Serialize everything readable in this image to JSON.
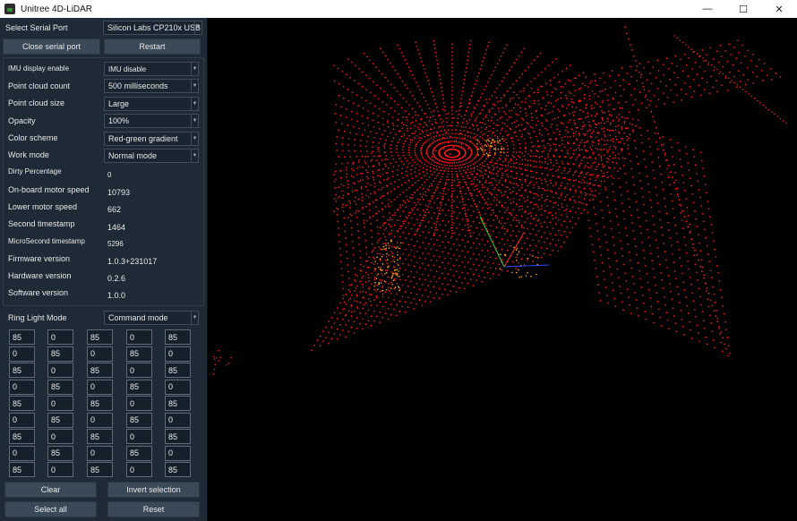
{
  "window": {
    "title": "Unitree 4D-LiDAR",
    "minimize": "—",
    "maximize": "☐",
    "close": "✕"
  },
  "serial": {
    "label": "Select Serial Port",
    "port_value": "Silicon Labs CP210x USB",
    "close_button": "Close serial port",
    "restart_button": "Restart"
  },
  "settings": [
    {
      "label": "IMU display enable",
      "value": "IMU disable"
    },
    {
      "label": "Point cloud count",
      "value": "500 milliseconds"
    },
    {
      "label": "Point cloud size",
      "value": "Large"
    },
    {
      "label": "Opacity",
      "value": "100%"
    },
    {
      "label": "Color scheme",
      "value": "Red-green gradient"
    },
    {
      "label": "Work mode",
      "value": "Normal mode"
    }
  ],
  "status": [
    {
      "label": "Dirty Percentage",
      "value": "0"
    },
    {
      "label": "On-board motor speed",
      "value": "10793"
    },
    {
      "label": "Lower motor speed",
      "value": "662"
    },
    {
      "label": "Second timestamp",
      "value": "1464"
    },
    {
      "label": "MicroSecond timestamp",
      "value": "5296"
    },
    {
      "label": "Firmware version",
      "value": "1.0.3+231017"
    },
    {
      "label": "Hardware version",
      "value": "0.2.6"
    },
    {
      "label": "Software version",
      "value": "1.0.0"
    }
  ],
  "ring_light": {
    "label": "Ring Light Mode",
    "mode": "Command mode",
    "grid": [
      [
        "85",
        "0",
        "85",
        "0",
        "85"
      ],
      [
        "0",
        "85",
        "0",
        "85",
        "0"
      ],
      [
        "85",
        "0",
        "85",
        "0",
        "85"
      ],
      [
        "0",
        "85",
        "0",
        "85",
        "0"
      ],
      [
        "85",
        "0",
        "85",
        "0",
        "85"
      ],
      [
        "0",
        "85",
        "0",
        "85",
        "0"
      ],
      [
        "85",
        "0",
        "85",
        "0",
        "85"
      ],
      [
        "0",
        "85",
        "0",
        "85",
        "0"
      ],
      [
        "85",
        "0",
        "85",
        "0",
        "85"
      ]
    ]
  },
  "actions": {
    "clear": "Clear",
    "invert": "Invert selection",
    "select_all": "Select all",
    "reset": "Reset"
  },
  "viewport": {
    "background": "#000000",
    "point_color": "#ff1a1a",
    "accent_color": "#ffb000",
    "axis_x_color": "#ff2a2a",
    "axis_y_color": "#2ecc40",
    "axis_z_color": "#2a4dff"
  }
}
